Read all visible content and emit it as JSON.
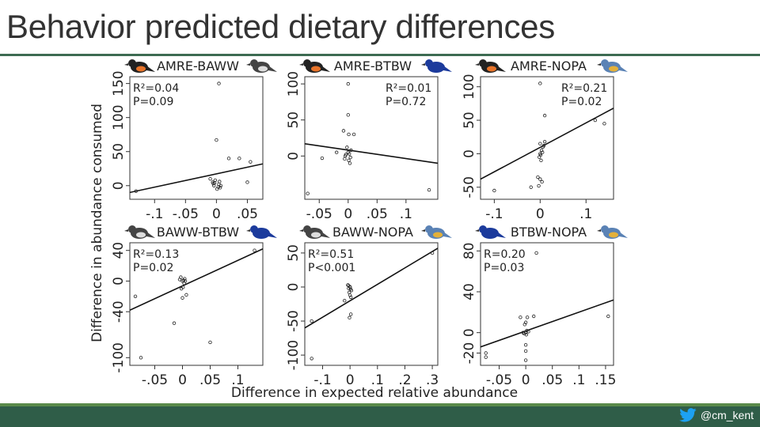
{
  "slide": {
    "title": "Behavior predicted dietary differences",
    "handle": "@cm_kent",
    "twitter_icon": "twitter-bird-icon",
    "colors": {
      "title_rule": "#3d6b52",
      "bottom_bar": "#2f5d48",
      "twitter": "#1da1f2"
    }
  },
  "figure": {
    "ylabel": "Difference in abundance consumed",
    "xlabel": "Difference in expected relative abundance"
  },
  "chart_data": [
    {
      "type": "scatter",
      "title": "AMRE-BAWW",
      "stats": [
        "R²=0.04",
        "P=0.09"
      ],
      "xlim": [
        -0.14,
        0.075
      ],
      "ylim": [
        -20,
        160
      ],
      "xticks": [
        -0.1,
        -0.05,
        0,
        0.05
      ],
      "xtick_labels": [
        "-.1",
        "-.05",
        "0",
        ".05"
      ],
      "yticks": [
        0,
        50,
        100,
        150
      ],
      "ytick_labels": [
        "0",
        "50",
        "100",
        "150"
      ],
      "x": [
        -0.13,
        0.004,
        -0.006,
        -0.004,
        0.003,
        0.005,
        -0.003,
        0.001,
        0.006,
        -0.002,
        0.007,
        -0.005,
        -0.01,
        0.0,
        0.02,
        0.037,
        0.055,
        0.05,
        0.004
      ],
      "y": [
        -8,
        2,
        5,
        0,
        -2,
        6,
        4,
        -5,
        -3,
        8,
        0,
        3,
        10,
        67,
        40,
        40,
        35,
        5,
        150
      ],
      "fit": [
        [
          -0.14,
          -10
        ],
        [
          0.075,
          32
        ]
      ]
    },
    {
      "type": "scatter",
      "title": "AMRE-BTBW",
      "stats": [
        "R²=0.01",
        "P=0.72"
      ],
      "xlim": [
        -0.075,
        0.155
      ],
      "ylim": [
        -60,
        110
      ],
      "xticks": [
        -0.05,
        0,
        0.05,
        0.1
      ],
      "xtick_labels": [
        "-.05",
        "0",
        ".05",
        ".1"
      ],
      "yticks": [
        0,
        50,
        100
      ],
      "ytick_labels": [
        "0",
        "50",
        "100"
      ],
      "x": [
        -0.07,
        -0.045,
        -0.02,
        0.0,
        -0.005,
        0.005,
        -0.002,
        0.003,
        0.001,
        -0.004,
        0.002,
        0.004,
        -0.006,
        0.0,
        0.01,
        -0.008,
        0.001,
        0.0,
        0.14
      ],
      "y": [
        -52,
        -3,
        5,
        5,
        0,
        8,
        12,
        -10,
        -6,
        2,
        3,
        -2,
        -4,
        57,
        30,
        35,
        30,
        100,
        -47
      ],
      "fit": [
        [
          -0.075,
          17
        ],
        [
          0.155,
          -10
        ]
      ]
    },
    {
      "type": "scatter",
      "title": "AMRE-NOPA",
      "stats": [
        "R²=0.21",
        "P=0.02"
      ],
      "xlim": [
        -0.13,
        0.16
      ],
      "ylim": [
        -68,
        115
      ],
      "xticks": [
        -0.1,
        0,
        0.1
      ],
      "xtick_labels": [
        "-.1",
        "0",
        ".1"
      ],
      "yticks": [
        -50,
        0,
        50,
        100
      ],
      "ytick_labels": [
        "-50",
        "0",
        "50",
        "100"
      ],
      "x": [
        -0.1,
        -0.02,
        -0.005,
        0.0,
        0.005,
        -0.002,
        0.003,
        0.001,
        0.006,
        0.0,
        0.008,
        0.01,
        0.004,
        -0.003,
        0.0,
        0.01,
        0.14,
        0.12,
        0.0,
        0.002
      ],
      "y": [
        -55,
        -50,
        -35,
        0,
        2,
        -5,
        5,
        -2,
        10,
        15,
        12,
        18,
        -42,
        -48,
        -38,
        57,
        45,
        50,
        105,
        -10
      ],
      "fit": [
        [
          -0.13,
          -38
        ],
        [
          0.16,
          68
        ]
      ]
    },
    {
      "type": "scatter",
      "title": "BAWW-BTBW",
      "stats": [
        "R²=0.13",
        "P=0.02"
      ],
      "xlim": [
        -0.095,
        0.145
      ],
      "ylim": [
        -110,
        50
      ],
      "xticks": [
        -0.05,
        0,
        0.05,
        0.1
      ],
      "xtick_labels": [
        "-.05",
        "0",
        ".05",
        ".1"
      ],
      "yticks": [
        -100,
        -40,
        0,
        40
      ],
      "ytick_labels": [
        "-100",
        "-40",
        "0",
        "40"
      ],
      "x": [
        -0.075,
        -0.085,
        -0.015,
        0.0,
        -0.005,
        0.003,
        -0.003,
        0.005,
        0.001,
        -0.002,
        0.004,
        0.007,
        0.0,
        0.002,
        0.05,
        0.13
      ],
      "y": [
        -100,
        -20,
        -55,
        0,
        2,
        -3,
        5,
        0,
        -8,
        -10,
        3,
        -18,
        -22,
        1,
        -80,
        40
      ],
      "fit": [
        [
          -0.095,
          -38
        ],
        [
          0.145,
          42
        ]
      ]
    },
    {
      "type": "scatter",
      "title": "BAWW-NOPA",
      "stats": [
        "R²=0.51",
        "P<0.001"
      ],
      "xlim": [
        -0.165,
        0.32
      ],
      "ylim": [
        -115,
        65
      ],
      "xticks": [
        -0.1,
        0,
        0.1,
        0.2,
        0.3
      ],
      "xtick_labels": [
        "-.1",
        "0",
        ".1",
        ".2",
        ".3"
      ],
      "yticks": [
        -100,
        -50,
        0,
        50
      ],
      "ytick_labels": [
        "-100",
        "-50",
        "0",
        "50"
      ],
      "x": [
        -0.14,
        -0.14,
        -0.02,
        0.0,
        -0.005,
        0.005,
        -0.003,
        0.002,
        0.0,
        -0.008,
        0.003,
        -0.002,
        -0.005,
        0.003,
        0.3,
        0.0
      ],
      "y": [
        -105,
        -50,
        -20,
        0,
        -2,
        -5,
        -8,
        -3,
        -12,
        3,
        -40,
        -45,
        2,
        -15,
        50,
        0
      ],
      "fit": [
        [
          -0.165,
          -60
        ],
        [
          0.32,
          57
        ]
      ]
    },
    {
      "type": "scatter",
      "title": "BTBW-NOPA",
      "stats": [
        "R=0.20",
        "P=0.03"
      ],
      "xlim": [
        -0.085,
        0.165
      ],
      "ylim": [
        -32,
        88
      ],
      "xticks": [
        -0.05,
        0,
        0.05,
        0.1,
        0.15
      ],
      "xtick_labels": [
        "-.05",
        "0",
        ".05",
        ".1",
        ".15"
      ],
      "yticks": [
        -20,
        0,
        40,
        80
      ],
      "ytick_labels": [
        "-20",
        "0",
        "40",
        "80"
      ],
      "x": [
        -0.075,
        -0.075,
        -0.005,
        0.0,
        0.005,
        -0.003,
        0.002,
        0.001,
        0.0,
        -0.002,
        0.0,
        -0.01,
        0.0,
        0.0,
        0.003,
        0.015,
        0.155,
        0.02
      ],
      "y": [
        -20,
        -24,
        0,
        0,
        1,
        -1,
        2,
        -2,
        10,
        8,
        -12,
        15,
        -18,
        -27,
        15,
        16,
        16,
        78
      ],
      "fit": [
        [
          -0.085,
          -14
        ],
        [
          0.165,
          32
        ]
      ]
    }
  ]
}
